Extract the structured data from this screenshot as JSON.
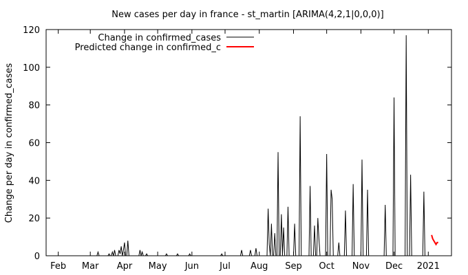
{
  "chart_data": {
    "type": "line",
    "title": "New cases per day in france - st_martin [ARIMA(4,2,1|0,0,0)]",
    "xlabel": "",
    "ylabel": "Change per day in confirmed_cases",
    "x_range": [
      "2020-01-21",
      "2021-01-22"
    ],
    "ylim": [
      0,
      120
    ],
    "y_ticks": [
      0,
      20,
      40,
      60,
      80,
      100,
      120
    ],
    "x_ticks": [
      {
        "label": "Feb",
        "date": "2020-02-01"
      },
      {
        "label": "Mar",
        "date": "2020-03-01"
      },
      {
        "label": "Apr",
        "date": "2020-04-01"
      },
      {
        "label": "May",
        "date": "2020-05-01"
      },
      {
        "label": "Jun",
        "date": "2020-06-01"
      },
      {
        "label": "Jul",
        "date": "2020-07-01"
      },
      {
        "label": "Aug",
        "date": "2020-08-01"
      },
      {
        "label": "Sep",
        "date": "2020-09-01"
      },
      {
        "label": "Oct",
        "date": "2020-10-01"
      },
      {
        "label": "Nov",
        "date": "2020-11-01"
      },
      {
        "label": "Dec",
        "date": "2020-12-01"
      },
      {
        "label": "2021",
        "date": "2021-01-01"
      }
    ],
    "grid": false,
    "legend_position": "top-left",
    "series": [
      {
        "name": "Change in confirmed_cases",
        "color": "#000000",
        "points": [
          [
            "2020-01-21",
            0
          ],
          [
            "2020-03-07",
            0
          ],
          [
            "2020-03-08",
            2
          ],
          [
            "2020-03-09",
            0
          ],
          [
            "2020-03-17",
            0
          ],
          [
            "2020-03-18",
            1
          ],
          [
            "2020-03-19",
            0
          ],
          [
            "2020-03-20",
            0
          ],
          [
            "2020-03-21",
            2
          ],
          [
            "2020-03-22",
            0
          ],
          [
            "2020-03-23",
            3
          ],
          [
            "2020-03-24",
            0
          ],
          [
            "2020-03-26",
            0
          ],
          [
            "2020-03-27",
            3
          ],
          [
            "2020-03-28",
            1
          ],
          [
            "2020-03-29",
            5
          ],
          [
            "2020-03-30",
            0
          ],
          [
            "2020-03-31",
            3
          ],
          [
            "2020-04-01",
            7
          ],
          [
            "2020-04-02",
            0
          ],
          [
            "2020-04-03",
            0
          ],
          [
            "2020-04-04",
            8
          ],
          [
            "2020-04-05",
            0
          ],
          [
            "2020-04-14",
            0
          ],
          [
            "2020-04-15",
            3
          ],
          [
            "2020-04-16",
            0
          ],
          [
            "2020-04-17",
            2
          ],
          [
            "2020-04-18",
            0
          ],
          [
            "2020-04-20",
            0
          ],
          [
            "2020-04-21",
            1
          ],
          [
            "2020-04-22",
            0
          ],
          [
            "2020-05-08",
            0
          ],
          [
            "2020-05-09",
            1
          ],
          [
            "2020-05-10",
            0
          ],
          [
            "2020-05-18",
            0
          ],
          [
            "2020-05-19",
            1
          ],
          [
            "2020-05-20",
            0
          ],
          [
            "2020-05-29",
            0
          ],
          [
            "2020-05-30",
            1
          ],
          [
            "2020-05-31",
            0
          ],
          [
            "2020-06-27",
            0
          ],
          [
            "2020-06-28",
            1
          ],
          [
            "2020-06-29",
            0
          ],
          [
            "2020-07-15",
            0
          ],
          [
            "2020-07-16",
            3
          ],
          [
            "2020-07-17",
            0
          ],
          [
            "2020-07-23",
            0
          ],
          [
            "2020-07-24",
            3
          ],
          [
            "2020-07-25",
            0
          ],
          [
            "2020-07-28",
            0
          ],
          [
            "2020-07-29",
            4
          ],
          [
            "2020-07-30",
            0
          ],
          [
            "2020-08-08",
            0
          ],
          [
            "2020-08-09",
            25
          ],
          [
            "2020-08-10",
            6
          ],
          [
            "2020-08-11",
            0
          ],
          [
            "2020-08-12",
            17
          ],
          [
            "2020-08-13",
            0
          ],
          [
            "2020-08-14",
            0
          ],
          [
            "2020-08-15",
            12
          ],
          [
            "2020-08-16",
            0
          ],
          [
            "2020-08-17",
            0
          ],
          [
            "2020-08-18",
            55
          ],
          [
            "2020-08-19",
            0
          ],
          [
            "2020-08-20",
            0
          ],
          [
            "2020-08-21",
            22
          ],
          [
            "2020-08-22",
            0
          ],
          [
            "2020-08-23",
            15
          ],
          [
            "2020-08-24",
            0
          ],
          [
            "2020-08-26",
            0
          ],
          [
            "2020-08-27",
            26
          ],
          [
            "2020-08-28",
            0
          ],
          [
            "2020-09-01",
            0
          ],
          [
            "2020-09-02",
            17
          ],
          [
            "2020-09-03",
            0
          ],
          [
            "2020-09-06",
            0
          ],
          [
            "2020-09-07",
            74
          ],
          [
            "2020-09-08",
            0
          ],
          [
            "2020-09-15",
            0
          ],
          [
            "2020-09-16",
            37
          ],
          [
            "2020-09-17",
            0
          ],
          [
            "2020-09-19",
            0
          ],
          [
            "2020-09-20",
            16
          ],
          [
            "2020-09-21",
            0
          ],
          [
            "2020-09-22",
            0
          ],
          [
            "2020-09-23",
            20
          ],
          [
            "2020-09-24",
            9
          ],
          [
            "2020-09-25",
            0
          ],
          [
            "2020-09-30",
            0
          ],
          [
            "2020-10-01",
            54
          ],
          [
            "2020-10-02",
            0
          ],
          [
            "2020-10-04",
            0
          ],
          [
            "2020-10-05",
            35
          ],
          [
            "2020-10-06",
            30
          ],
          [
            "2020-10-07",
            0
          ],
          [
            "2020-10-11",
            0
          ],
          [
            "2020-10-12",
            7
          ],
          [
            "2020-10-13",
            0
          ],
          [
            "2020-10-17",
            0
          ],
          [
            "2020-10-18",
            24
          ],
          [
            "2020-10-19",
            0
          ],
          [
            "2020-10-24",
            0
          ],
          [
            "2020-10-25",
            38
          ],
          [
            "2020-10-26",
            0
          ],
          [
            "2020-11-01",
            0
          ],
          [
            "2020-11-02",
            51
          ],
          [
            "2020-11-03",
            0
          ],
          [
            "2020-11-06",
            0
          ],
          [
            "2020-11-07",
            35
          ],
          [
            "2020-11-08",
            0
          ],
          [
            "2020-11-22",
            0
          ],
          [
            "2020-11-23",
            27
          ],
          [
            "2020-11-24",
            0
          ],
          [
            "2020-11-30",
            0
          ],
          [
            "2020-12-01",
            84
          ],
          [
            "2020-12-02",
            0
          ],
          [
            "2020-12-11",
            0
          ],
          [
            "2020-12-12",
            117
          ],
          [
            "2020-12-13",
            0
          ],
          [
            "2020-12-15",
            0
          ],
          [
            "2020-12-16",
            43
          ],
          [
            "2020-12-17",
            0
          ],
          [
            "2020-12-27",
            0
          ],
          [
            "2020-12-28",
            34
          ],
          [
            "2020-12-29",
            0
          ]
        ]
      },
      {
        "name": "Predicted change in confirmed_c",
        "color": "#ff0000",
        "points": [
          [
            "2021-01-04",
            11
          ],
          [
            "2021-01-05",
            9
          ],
          [
            "2021-01-06",
            8
          ],
          [
            "2021-01-07",
            7
          ],
          [
            "2021-01-08",
            6
          ],
          [
            "2021-01-09",
            7
          ],
          [
            "2021-01-10",
            7
          ]
        ]
      }
    ]
  }
}
